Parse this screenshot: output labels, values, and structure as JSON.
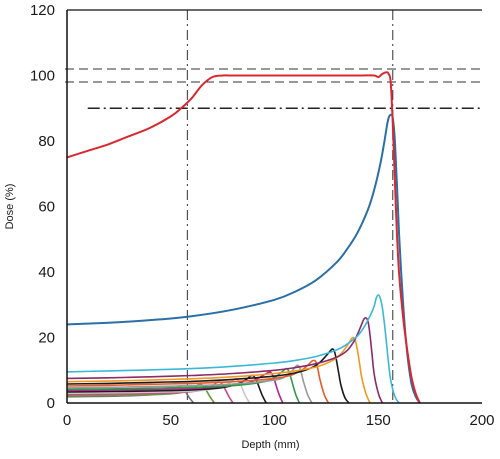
{
  "chart_data": {
    "type": "line",
    "xlabel": "Depth (mm)",
    "ylabel": "Dose (%)",
    "xlim": [
      0,
      200
    ],
    "ylim": [
      0,
      120
    ],
    "xticks": [
      0,
      50,
      100,
      150,
      200
    ],
    "yticks": [
      0,
      20,
      40,
      60,
      80,
      100,
      120
    ],
    "grid": false,
    "reference_lines": {
      "vertical_dashdot": [
        58,
        157
      ],
      "horizontal_dashed": [
        102,
        98
      ],
      "horizontal_dashdot": [
        90
      ]
    },
    "series": [
      {
        "color": "#d9282f",
        "x": [
          0,
          10,
          20,
          30,
          40,
          50,
          55,
          60,
          65,
          70,
          75,
          80,
          100,
          120,
          140,
          148,
          150,
          152,
          154,
          155,
          156,
          157,
          158,
          159,
          160,
          162,
          164,
          166,
          168,
          170
        ],
        "y": [
          75,
          77,
          79,
          81.5,
          84,
          87.5,
          90,
          93,
          97,
          99.5,
          100,
          100,
          100,
          100,
          100,
          100,
          99.5,
          100.5,
          101,
          100.5,
          98,
          85,
          68,
          52,
          40,
          26,
          16,
          8,
          3,
          0
        ]
      },
      {
        "color": "#2a6fa6",
        "x": [
          0,
          20,
          40,
          60,
          80,
          100,
          110,
          120,
          130,
          135,
          140,
          145,
          148,
          151,
          153,
          154,
          155,
          156,
          157,
          158,
          159,
          160,
          162,
          164,
          166,
          168,
          170
        ],
        "y": [
          24,
          24.5,
          25.3,
          26.5,
          28.5,
          31.5,
          34,
          37.5,
          43,
          47,
          52,
          59,
          65,
          73,
          80,
          84,
          87,
          88,
          87,
          80,
          67,
          52,
          30,
          15,
          6,
          2,
          0
        ]
      },
      {
        "color": "#3bb8d8",
        "x": [
          0,
          20,
          40,
          60,
          80,
          100,
          110,
          120,
          130,
          135,
          140,
          143,
          146,
          148,
          149,
          150,
          151,
          152,
          153,
          154,
          155,
          156,
          158,
          160
        ],
        "y": [
          9.5,
          9.8,
          10.1,
          10.5,
          11.2,
          12.2,
          13,
          14.2,
          16.2,
          18,
          20.5,
          23,
          26.5,
          29.5,
          32,
          33,
          32,
          29,
          24,
          18,
          12,
          7,
          2,
          0
        ]
      },
      {
        "color": "#8a2a6b",
        "x": [
          0,
          20,
          40,
          60,
          80,
          100,
          110,
          120,
          130,
          135,
          138,
          140,
          142,
          143,
          144,
          145,
          146,
          147,
          148,
          150,
          152
        ],
        "y": [
          7.5,
          7.7,
          8,
          8.4,
          9,
          10,
          10.8,
          12,
          14,
          16,
          18.5,
          21,
          24,
          25.5,
          26,
          25,
          21,
          15,
          9,
          3,
          0
        ]
      },
      {
        "color": "#ef9a1e",
        "x": [
          0,
          20,
          40,
          60,
          80,
          100,
          110,
          120,
          128,
          132,
          135,
          137,
          138,
          139,
          140,
          141,
          142,
          144,
          146
        ],
        "y": [
          6.5,
          6.7,
          7,
          7.4,
          8,
          9,
          9.8,
          11,
          13,
          15,
          17.5,
          19.5,
          20,
          19,
          16,
          12,
          8,
          3,
          0
        ]
      },
      {
        "color": "#1a1a1a",
        "x": [
          0,
          20,
          40,
          60,
          80,
          100,
          110,
          118,
          122,
          125,
          127,
          128,
          129,
          130,
          131,
          132,
          134,
          136
        ],
        "y": [
          5.8,
          6,
          6.3,
          6.6,
          7.2,
          8.2,
          9.2,
          10.8,
          12.5,
          14.5,
          16,
          16.5,
          15.5,
          12.5,
          9,
          5.5,
          1.5,
          0
        ]
      },
      {
        "color": "#e85a2a",
        "x": [
          0,
          20,
          40,
          60,
          80,
          100,
          108,
          113,
          116,
          118,
          119,
          120,
          121,
          122,
          124,
          126
        ],
        "y": [
          5.2,
          5.4,
          5.7,
          6,
          6.5,
          7.5,
          8.5,
          10,
          11.5,
          12.8,
          13,
          12.5,
          10,
          7,
          2.5,
          0
        ]
      },
      {
        "color": "#9a9a9a",
        "x": [
          0,
          20,
          40,
          60,
          80,
          100,
          105,
          108,
          110,
          111,
          112,
          113,
          114,
          116,
          118
        ],
        "y": [
          4.6,
          4.8,
          5,
          5.3,
          5.8,
          7,
          8,
          9.5,
          11,
          11.5,
          11,
          9,
          6.5,
          2.5,
          0
        ]
      },
      {
        "color": "#2e9a4a",
        "x": [
          0,
          20,
          40,
          60,
          80,
          95,
          100,
          103,
          105,
          106,
          107,
          108,
          110,
          112
        ],
        "y": [
          4.2,
          4.3,
          4.5,
          4.8,
          5.3,
          6.5,
          7.8,
          9.2,
          10.3,
          10.5,
          9.5,
          7.5,
          3,
          0
        ]
      },
      {
        "color": "#b0288a",
        "x": [
          0,
          20,
          40,
          60,
          80,
          88,
          92,
          95,
          97,
          98,
          99,
          100,
          102,
          104
        ],
        "y": [
          3.8,
          3.9,
          4.1,
          4.4,
          5.3,
          6.3,
          7.5,
          8.6,
          9.3,
          9.4,
          8.6,
          7,
          3,
          0
        ]
      },
      {
        "color": "#1a1a1a",
        "x": [
          0,
          20,
          40,
          60,
          75,
          82,
          86,
          88,
          89,
          90,
          91,
          92,
          94,
          96
        ],
        "y": [
          3.4,
          3.5,
          3.7,
          4,
          4.7,
          5.8,
          7,
          8,
          8.4,
          8.2,
          7.2,
          5.8,
          2.5,
          0
        ]
      },
      {
        "color": "#c8c8c8",
        "x": [
          0,
          20,
          40,
          60,
          70,
          75,
          78,
          80,
          81,
          82,
          83,
          84,
          86,
          88
        ],
        "y": [
          3,
          3.1,
          3.3,
          3.6,
          4.2,
          5,
          6,
          7,
          7.4,
          7.3,
          6.5,
          5.2,
          2.2,
          0
        ]
      },
      {
        "color": "#c84a8a",
        "x": [
          0,
          20,
          40,
          55,
          64,
          68,
          71,
          72,
          73,
          74,
          75,
          76,
          78,
          80
        ],
        "y": [
          2.6,
          2.7,
          2.9,
          3.2,
          3.8,
          4.6,
          5.6,
          6.2,
          6.4,
          6.3,
          5.6,
          4.5,
          2,
          0
        ]
      },
      {
        "color": "#6a9a3a",
        "x": [
          0,
          20,
          40,
          50,
          56,
          60,
          62,
          63,
          64,
          65,
          66,
          67,
          69,
          71
        ],
        "y": [
          2.2,
          2.3,
          2.5,
          2.8,
          3.3,
          4.1,
          5,
          5.5,
          5.7,
          5.6,
          5,
          4,
          1.8,
          0
        ]
      },
      {
        "color": "#707070",
        "x": [
          0,
          15,
          30,
          40,
          46,
          50,
          52,
          53,
          54,
          55,
          56,
          57,
          59,
          61
        ],
        "y": [
          1.9,
          2,
          2.2,
          2.5,
          3,
          3.7,
          4.3,
          4.7,
          4.9,
          4.8,
          4.3,
          3.5,
          1.6,
          0
        ]
      }
    ]
  }
}
